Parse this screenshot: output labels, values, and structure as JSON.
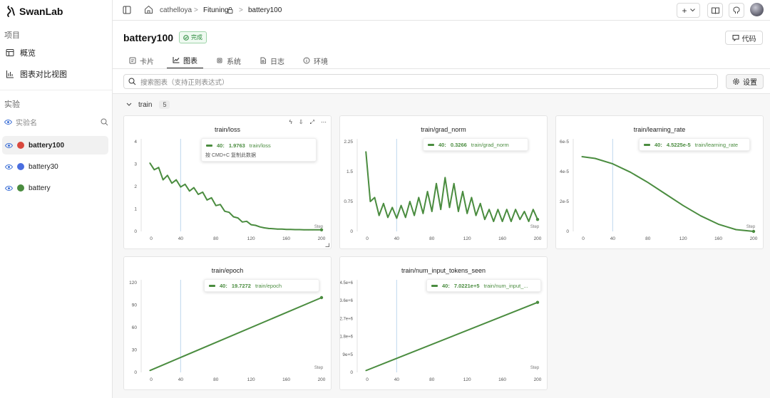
{
  "brand": {
    "name": "SwanLab"
  },
  "sidebar": {
    "project_label": "项目",
    "nav": [
      {
        "label": "概览"
      },
      {
        "label": "图表对比视图"
      }
    ],
    "experiments_label": "实验",
    "exp_search_placeholder": "实验名",
    "experiments": [
      {
        "name": "battery100",
        "color": "#d9493e"
      },
      {
        "name": "battery30",
        "color": "#4a6ee0"
      },
      {
        "name": "battery",
        "color": "#4a8c3f"
      }
    ]
  },
  "breadcrumb": {
    "user": "cathelloya",
    "project": "Fituning",
    "run": "battery100"
  },
  "header": {
    "title": "battery100",
    "status": "完成",
    "code_button": "代码"
  },
  "tabs": [
    {
      "label": "卡片"
    },
    {
      "label": "图表"
    },
    {
      "label": "系统"
    },
    {
      "label": "日志"
    },
    {
      "label": "环境"
    }
  ],
  "chart_search": {
    "placeholder": "搜索图表（支持正则表达式）",
    "settings_label": "设置"
  },
  "group": {
    "name": "train",
    "count": "5"
  },
  "colors": {
    "series": "#4a8c3f",
    "cursor": "#c9def0"
  },
  "charts": [
    {
      "title": "train/loss",
      "tooltip_step": "40:",
      "tooltip_value": "1.9763",
      "tooltip_name": "train/loss",
      "tooltip_hint": "按 CMD+C 复制此数据",
      "x_axis_label": "Step"
    },
    {
      "title": "train/grad_norm",
      "tooltip_step": "40:",
      "tooltip_value": "0.3266",
      "tooltip_name": "train/grad_norm",
      "x_axis_label": "Step"
    },
    {
      "title": "train/learning_rate",
      "tooltip_step": "40:",
      "tooltip_value": "4.5225e-5",
      "tooltip_name": "train/learning_rate",
      "x_axis_label": "Step"
    },
    {
      "title": "train/epoch",
      "tooltip_step": "40:",
      "tooltip_value": "19.7272",
      "tooltip_name": "train/epoch",
      "x_axis_label": "Step"
    },
    {
      "title": "train/num_input_tokens_seen",
      "tooltip_step": "40:",
      "tooltip_value": "7.0221e+5",
      "tooltip_name": "train/num_input_...",
      "x_axis_label": "Step"
    }
  ],
  "chart_data": [
    {
      "type": "line",
      "title": "train/loss",
      "xlabel": "Step",
      "xlim": [
        0,
        200
      ],
      "ylim": [
        0,
        4
      ],
      "x_ticks": [
        "0",
        "40",
        "80",
        "120",
        "160",
        "200"
      ],
      "y_ticks": [
        "0",
        "1",
        "2",
        "3",
        "4"
      ],
      "cursor_x": 40,
      "series": [
        {
          "name": "train/loss",
          "x": [
            5,
            10,
            15,
            20,
            25,
            30,
            35,
            40,
            45,
            50,
            55,
            60,
            65,
            70,
            75,
            80,
            85,
            90,
            95,
            100,
            105,
            110,
            115,
            120,
            125,
            130,
            135,
            140,
            145,
            150,
            155,
            160,
            165,
            170,
            175,
            180,
            185,
            190,
            195,
            200
          ],
          "y": [
            3.05,
            2.75,
            2.85,
            2.3,
            2.5,
            2.15,
            2.3,
            1.98,
            2.1,
            1.8,
            1.95,
            1.65,
            1.75,
            1.4,
            1.5,
            1.15,
            1.2,
            0.9,
            0.85,
            0.65,
            0.6,
            0.42,
            0.45,
            0.3,
            0.27,
            0.2,
            0.16,
            0.13,
            0.12,
            0.1,
            0.1,
            0.09,
            0.09,
            0.08,
            0.08,
            0.07,
            0.07,
            0.07,
            0.07,
            0.07
          ]
        }
      ]
    },
    {
      "type": "line",
      "title": "train/grad_norm",
      "xlabel": "Step",
      "xlim": [
        0,
        200
      ],
      "ylim": [
        0,
        2.25
      ],
      "x_ticks": [
        "0",
        "40",
        "80",
        "120",
        "160",
        "200"
      ],
      "y_ticks": [
        "0",
        "0.75",
        "1.5",
        "2.25"
      ],
      "cursor_x": 40,
      "series": [
        {
          "name": "train/grad_norm",
          "x": [
            5,
            10,
            15,
            20,
            25,
            30,
            35,
            40,
            45,
            50,
            55,
            60,
            65,
            70,
            75,
            80,
            85,
            90,
            95,
            100,
            105,
            110,
            115,
            120,
            125,
            130,
            135,
            140,
            145,
            150,
            155,
            160,
            165,
            170,
            175,
            180,
            185,
            190,
            195,
            200
          ],
          "y": [
            2.0,
            0.75,
            0.85,
            0.4,
            0.7,
            0.35,
            0.6,
            0.33,
            0.65,
            0.35,
            0.75,
            0.4,
            0.85,
            0.45,
            1.0,
            0.5,
            1.2,
            0.55,
            1.35,
            0.6,
            1.2,
            0.5,
            1.0,
            0.45,
            0.85,
            0.4,
            0.7,
            0.3,
            0.55,
            0.25,
            0.55,
            0.25,
            0.55,
            0.25,
            0.55,
            0.3,
            0.5,
            0.25,
            0.55,
            0.3
          ]
        }
      ]
    },
    {
      "type": "line",
      "title": "train/learning_rate",
      "xlabel": "Step",
      "xlim": [
        0,
        200
      ],
      "ylim": [
        0,
        6e-05
      ],
      "x_ticks": [
        "0",
        "40",
        "80",
        "120",
        "160",
        "200"
      ],
      "y_ticks": [
        "0",
        "2e-5",
        "4e-5",
        "6e-5"
      ],
      "cursor_x": 40,
      "series": [
        {
          "name": "train/learning_rate",
          "x": [
            5,
            20,
            40,
            60,
            80,
            100,
            120,
            140,
            160,
            180,
            200
          ],
          "y": [
            5e-05,
            4.88e-05,
            4.52e-05,
            3.96e-05,
            3.27e-05,
            2.5e-05,
            1.73e-05,
            1.04e-05,
            4.8e-06,
            1.2e-06,
            0.0
          ]
        }
      ]
    },
    {
      "type": "line",
      "title": "train/epoch",
      "xlabel": "Step",
      "xlim": [
        0,
        200
      ],
      "ylim": [
        0,
        120
      ],
      "x_ticks": [
        "0",
        "40",
        "80",
        "120",
        "160",
        "200"
      ],
      "y_ticks": [
        "0",
        "30",
        "60",
        "90",
        "120"
      ],
      "cursor_x": 40,
      "series": [
        {
          "name": "train/epoch",
          "x": [
            5,
            200
          ],
          "y": [
            2.5,
            100
          ]
        }
      ]
    },
    {
      "type": "line",
      "title": "train/num_input_tokens_seen",
      "xlabel": "Step",
      "xlim": [
        0,
        200
      ],
      "ylim": [
        0,
        4500000
      ],
      "x_ticks": [
        "0",
        "40",
        "80",
        "120",
        "160",
        "200"
      ],
      "y_ticks": [
        "0",
        "9e+5",
        "1.8e+6",
        "2.7e+6",
        "3.6e+6",
        "4.5e+6"
      ],
      "cursor_x": 40,
      "series": [
        {
          "name": "train/num_input_tokens_seen",
          "x": [
            5,
            200
          ],
          "y": [
            90000,
            3510000
          ]
        }
      ]
    }
  ]
}
